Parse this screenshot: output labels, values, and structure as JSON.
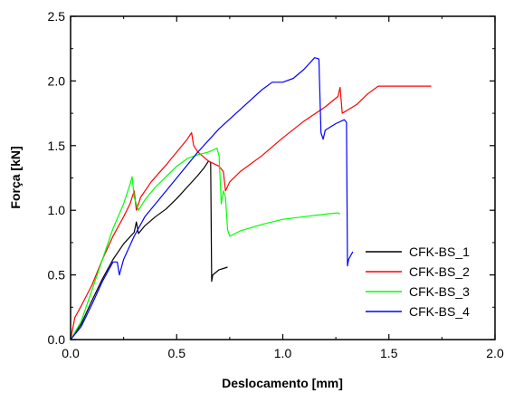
{
  "chart_data": {
    "type": "line",
    "xlabel": "Deslocamento [mm]",
    "ylabel": "Força [kN]",
    "xlim": [
      0.0,
      2.0
    ],
    "ylim": [
      0.0,
      2.5
    ],
    "x_ticks": [
      "0.0",
      "0.5",
      "1.0",
      "1.5",
      "2.0"
    ],
    "y_ticks": [
      "0.0",
      "0.5",
      "1.0",
      "1.5",
      "2.0",
      "2.5"
    ],
    "grid": false,
    "legend_position": "lower-right",
    "series": [
      {
        "name": "CFK-BS_1",
        "color": "#000000",
        "points": [
          [
            0.0,
            0.0
          ],
          [
            0.05,
            0.12
          ],
          [
            0.1,
            0.3
          ],
          [
            0.15,
            0.47
          ],
          [
            0.2,
            0.62
          ],
          [
            0.25,
            0.74
          ],
          [
            0.3,
            0.83
          ],
          [
            0.31,
            0.91
          ],
          [
            0.32,
            0.82
          ],
          [
            0.35,
            0.88
          ],
          [
            0.4,
            0.95
          ],
          [
            0.45,
            1.01
          ],
          [
            0.5,
            1.09
          ],
          [
            0.55,
            1.18
          ],
          [
            0.6,
            1.27
          ],
          [
            0.63,
            1.33
          ],
          [
            0.65,
            1.38
          ],
          [
            0.66,
            1.37
          ],
          [
            0.665,
            0.45
          ],
          [
            0.67,
            0.5
          ],
          [
            0.7,
            0.54
          ],
          [
            0.72,
            0.55
          ],
          [
            0.74,
            0.56
          ]
        ]
      },
      {
        "name": "CFK-BS_2",
        "color": "#ff0000",
        "points": [
          [
            0.0,
            0.0
          ],
          [
            0.02,
            0.17
          ],
          [
            0.05,
            0.26
          ],
          [
            0.1,
            0.42
          ],
          [
            0.15,
            0.62
          ],
          [
            0.2,
            0.8
          ],
          [
            0.25,
            0.95
          ],
          [
            0.28,
            1.05
          ],
          [
            0.3,
            1.15
          ],
          [
            0.31,
            1.0
          ],
          [
            0.33,
            1.1
          ],
          [
            0.38,
            1.22
          ],
          [
            0.45,
            1.35
          ],
          [
            0.5,
            1.45
          ],
          [
            0.55,
            1.55
          ],
          [
            0.57,
            1.6
          ],
          [
            0.58,
            1.5
          ],
          [
            0.6,
            1.45
          ],
          [
            0.65,
            1.38
          ],
          [
            0.7,
            1.34
          ],
          [
            0.72,
            1.3
          ],
          [
            0.73,
            1.15
          ],
          [
            0.75,
            1.22
          ],
          [
            0.8,
            1.3
          ],
          [
            0.9,
            1.42
          ],
          [
            1.0,
            1.56
          ],
          [
            1.1,
            1.69
          ],
          [
            1.2,
            1.8
          ],
          [
            1.26,
            1.88
          ],
          [
            1.27,
            1.95
          ],
          [
            1.28,
            1.75
          ],
          [
            1.3,
            1.77
          ],
          [
            1.35,
            1.82
          ],
          [
            1.4,
            1.9
          ],
          [
            1.45,
            1.96
          ],
          [
            1.55,
            1.96
          ],
          [
            1.7,
            1.96
          ]
        ]
      },
      {
        "name": "CFK-BS_3",
        "color": "#00ff00",
        "points": [
          [
            0.0,
            0.0
          ],
          [
            0.05,
            0.14
          ],
          [
            0.1,
            0.38
          ],
          [
            0.15,
            0.62
          ],
          [
            0.2,
            0.86
          ],
          [
            0.25,
            1.05
          ],
          [
            0.28,
            1.2
          ],
          [
            0.29,
            1.26
          ],
          [
            0.3,
            1.1
          ],
          [
            0.32,
            1.0
          ],
          [
            0.35,
            1.08
          ],
          [
            0.4,
            1.18
          ],
          [
            0.45,
            1.26
          ],
          [
            0.5,
            1.34
          ],
          [
            0.55,
            1.4
          ],
          [
            0.6,
            1.43
          ],
          [
            0.65,
            1.45
          ],
          [
            0.69,
            1.48
          ],
          [
            0.7,
            1.42
          ],
          [
            0.71,
            1.05
          ],
          [
            0.72,
            1.15
          ],
          [
            0.73,
            1.1
          ],
          [
            0.74,
            0.85
          ],
          [
            0.75,
            0.8
          ],
          [
            0.8,
            0.84
          ],
          [
            0.9,
            0.89
          ],
          [
            1.0,
            0.93
          ],
          [
            1.1,
            0.95
          ],
          [
            1.2,
            0.97
          ],
          [
            1.26,
            0.98
          ],
          [
            1.27,
            0.97
          ]
        ]
      },
      {
        "name": "CFK-BS_4",
        "color": "#0000ff",
        "points": [
          [
            0.0,
            0.0
          ],
          [
            0.05,
            0.1
          ],
          [
            0.1,
            0.27
          ],
          [
            0.15,
            0.45
          ],
          [
            0.2,
            0.6
          ],
          [
            0.22,
            0.6
          ],
          [
            0.23,
            0.5
          ],
          [
            0.25,
            0.62
          ],
          [
            0.3,
            0.8
          ],
          [
            0.35,
            0.95
          ],
          [
            0.4,
            1.05
          ],
          [
            0.5,
            1.25
          ],
          [
            0.6,
            1.45
          ],
          [
            0.7,
            1.63
          ],
          [
            0.8,
            1.78
          ],
          [
            0.9,
            1.93
          ],
          [
            0.95,
            1.99
          ],
          [
            1.0,
            1.99
          ],
          [
            1.05,
            2.02
          ],
          [
            1.1,
            2.09
          ],
          [
            1.15,
            2.18
          ],
          [
            1.17,
            2.17
          ],
          [
            1.18,
            1.6
          ],
          [
            1.19,
            1.55
          ],
          [
            1.2,
            1.62
          ],
          [
            1.25,
            1.67
          ],
          [
            1.29,
            1.7
          ],
          [
            1.3,
            1.68
          ],
          [
            1.305,
            0.57
          ],
          [
            1.31,
            0.62
          ],
          [
            1.33,
            0.68
          ]
        ]
      }
    ]
  }
}
